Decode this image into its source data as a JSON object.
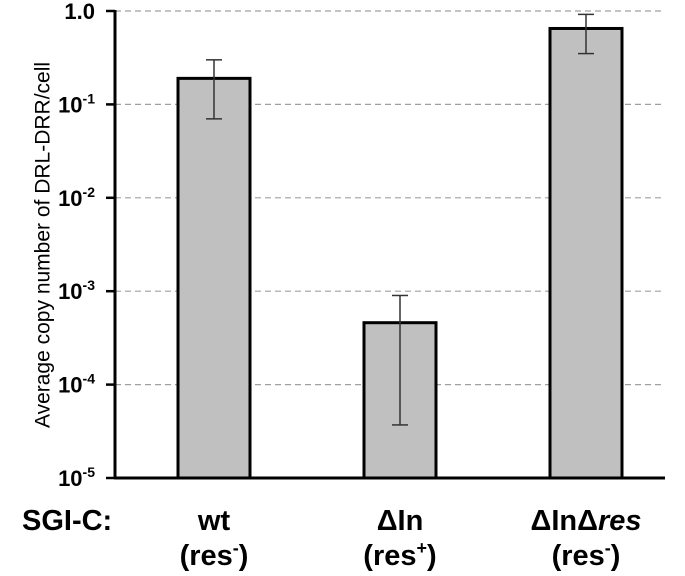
{
  "chart_data": {
    "type": "bar",
    "scale": "log",
    "ylabel": "Average copy number of DRL-DRR/cell",
    "ylim": [
      1e-05,
      1.0
    ],
    "grid": true,
    "ticks": [
      {
        "value": 1.0,
        "base": "1.0",
        "exp": ""
      },
      {
        "value": 0.1,
        "base": "10",
        "exp": "-1"
      },
      {
        "value": 0.01,
        "base": "10",
        "exp": "-2"
      },
      {
        "value": 0.001,
        "base": "10",
        "exp": "-3"
      },
      {
        "value": 0.0001,
        "base": "10",
        "exp": "-4"
      },
      {
        "value": 1e-05,
        "base": "10",
        "exp": "-5"
      }
    ],
    "x_prefix": "SGI-C:",
    "categories": [
      {
        "line1": "wt",
        "line1_italic": "",
        "line2": "(res",
        "line2_sup": "-",
        "line2_end": ")"
      },
      {
        "line1": "ΔIn",
        "line1_italic": "",
        "line2": "(res",
        "line2_sup": "+",
        "line2_end": ")"
      },
      {
        "line1": "ΔInΔ",
        "line1_italic": "res",
        "line2": "(res",
        "line2_sup": "-",
        "line2_end": ")"
      }
    ],
    "values": [
      0.19,
      0.00046,
      0.65
    ],
    "error_low": [
      0.07,
      3.7e-05,
      0.35
    ],
    "error_high": [
      0.3,
      0.0009,
      0.92
    ],
    "bar_color": "#c0c0c0",
    "bar_edge_color": "#000000",
    "grid_color": "#a0a0a0"
  }
}
